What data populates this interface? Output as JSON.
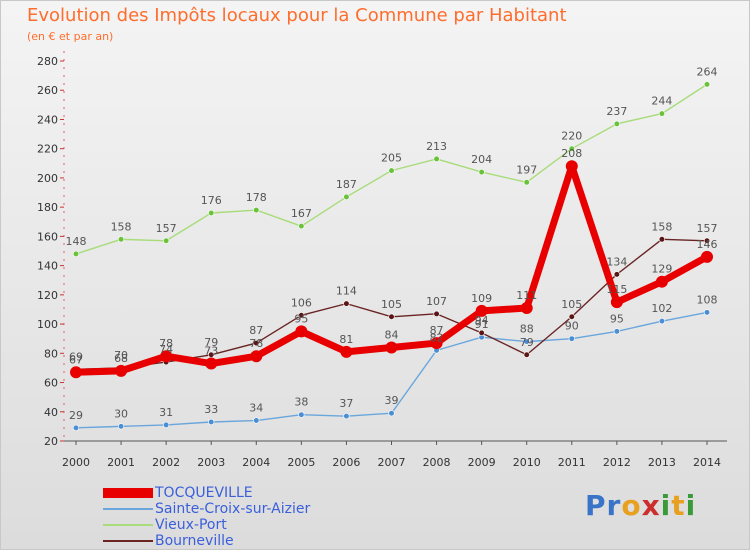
{
  "title": "Evolution des Impôts locaux pour la Commune par Habitant",
  "subtitle": "(en € et par an)",
  "logo": {
    "text": "Proxiti",
    "letters": [
      "P",
      "r",
      "o",
      "x",
      "i",
      "t",
      "i"
    ],
    "colors": [
      "#3a74c8",
      "#3a74c8",
      "#e8a020",
      "#cc2e2e",
      "#3a9a3a",
      "#e8a020",
      "#3a9a3a"
    ]
  },
  "chart_data": {
    "type": "line",
    "x": [
      "2000",
      "2001",
      "2002",
      "2003",
      "2004",
      "2005",
      "2006",
      "2007",
      "2008",
      "2009",
      "2010",
      "2011",
      "2012",
      "2013",
      "2014"
    ],
    "ylim": [
      20,
      280
    ],
    "yticks": [
      20,
      40,
      60,
      80,
      100,
      120,
      140,
      160,
      180,
      200,
      220,
      240,
      260,
      280
    ],
    "grid": false,
    "series": [
      {
        "name": "Sainte-Croix-sur-Aizier",
        "color": "#6aa6dc",
        "marker": "#4a8ed4",
        "width": 1.4,
        "radius": 2.8,
        "values": [
          29,
          30,
          31,
          33,
          34,
          38,
          37,
          39,
          82,
          91,
          88,
          90,
          95,
          102,
          108
        ],
        "labels": [
          29,
          30,
          31,
          33,
          34,
          38,
          37,
          39,
          82,
          91,
          88,
          90,
          95,
          102,
          108
        ]
      },
      {
        "name": "Vieux-Port",
        "color": "#a8dc7a",
        "marker": "#6ac23a",
        "width": 1.4,
        "radius": 2.8,
        "values": [
          148,
          158,
          157,
          176,
          178,
          167,
          187,
          205,
          213,
          204,
          197,
          220,
          237,
          244,
          264
        ],
        "labels": [
          148,
          158,
          157,
          176,
          178,
          167,
          187,
          205,
          213,
          204,
          197,
          220,
          237,
          244,
          264
        ]
      },
      {
        "name": "Bourneville",
        "color": "#6a2424",
        "marker": "#5a1616",
        "width": 1.4,
        "radius": 2.8,
        "values": [
          69,
          70,
          74,
          79,
          87,
          106,
          114,
          105,
          107,
          94,
          79,
          105,
          134,
          158,
          157
        ],
        "labels": [
          69,
          70,
          74,
          79,
          87,
          106,
          114,
          105,
          107,
          94,
          79,
          105,
          134,
          158,
          157
        ]
      },
      {
        "name": "TOCQUEVILLE",
        "color": "#e80000",
        "marker": "#e80000",
        "width": 7,
        "radius": 6,
        "values": [
          67,
          68,
          78,
          73,
          78,
          95,
          81,
          84,
          87,
          109,
          111,
          208,
          115,
          129,
          146
        ],
        "labels": [
          67,
          68,
          78,
          73,
          78,
          95,
          81,
          84,
          87,
          109,
          111,
          208,
          115,
          129,
          146
        ]
      }
    ],
    "legend": [
      "TOCQUEVILLE",
      "Sainte-Croix-sur-Aizier",
      "Vieux-Port",
      "Bourneville"
    ],
    "legend_position": "bottom-left"
  }
}
